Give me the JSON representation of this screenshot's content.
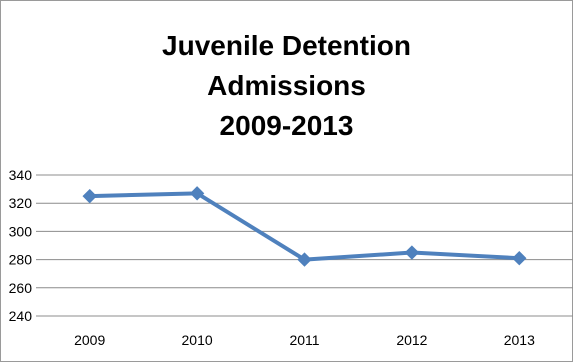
{
  "chart_data": {
    "type": "line",
    "title_lines": [
      "Juvenile Detention",
      "Admissions",
      "2009-2013"
    ],
    "categories": [
      "2009",
      "2010",
      "2011",
      "2012",
      "2013"
    ],
    "series": [
      {
        "values": [
          325,
          327,
          280,
          285,
          281
        ]
      }
    ],
    "ylim": [
      240,
      340
    ],
    "yticks": [
      240,
      260,
      280,
      300,
      320,
      340
    ],
    "grid": true,
    "legend": "none",
    "line_color": "#4F81BD"
  }
}
